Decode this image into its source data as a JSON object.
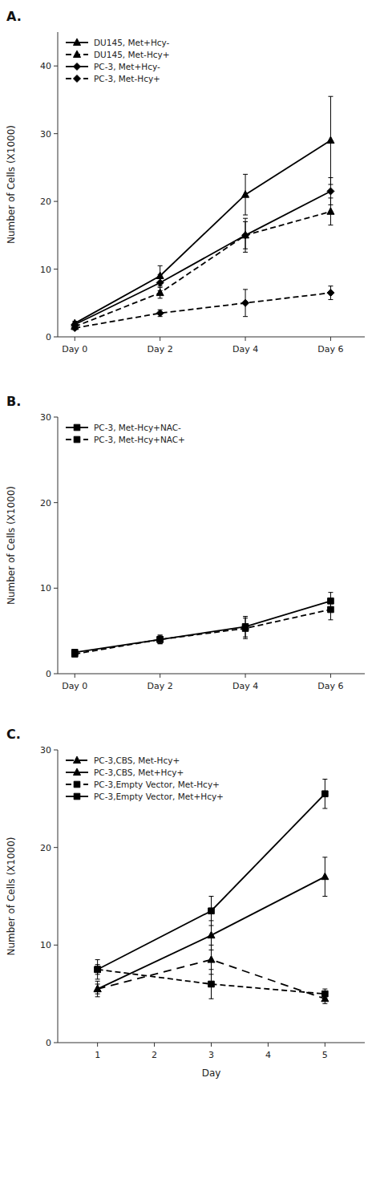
{
  "chart_data": [
    {
      "type": "line",
      "title": "A.",
      "x": [
        0,
        2,
        4,
        6
      ],
      "xlim": [
        -0.4,
        6.8
      ],
      "xticks": [
        {
          "value": 0,
          "label": "Day 0"
        },
        {
          "value": 2,
          "label": "Day 2"
        },
        {
          "value": 4,
          "label": "Day 4"
        },
        {
          "value": 6,
          "label": "Day 6"
        }
      ],
      "y_label": "Number of Cells (X1000)",
      "ylim": [
        0,
        45
      ],
      "yticks": [
        0,
        10,
        20,
        30,
        40
      ],
      "legend": "upper left",
      "series": [
        {
          "name": "DU145, Met+Hcy-",
          "color": "black",
          "line_style": "solid",
          "marker": "triangle",
          "values": [
            2.0,
            9.0,
            21.0,
            29.0
          ],
          "errors": [
            0.3,
            1.5,
            3.0,
            6.5
          ]
        },
        {
          "name": "DU145, Met-Hcy+",
          "color": "black",
          "line_style": "dashed",
          "marker": "triangle",
          "values": [
            1.5,
            6.5,
            15.0,
            18.5
          ],
          "errors": [
            0.2,
            0.8,
            2.0,
            2.0
          ]
        },
        {
          "name": "PC-3, Met+Hcy-",
          "color": "black",
          "line_style": "solid",
          "marker": "diamond",
          "values": [
            1.8,
            8.0,
            15.0,
            21.5
          ],
          "errors": [
            0.3,
            1.2,
            2.5,
            2.0
          ]
        },
        {
          "name": "PC-3, Met-Hcy+",
          "color": "black",
          "line_style": "dashed",
          "marker": "diamond",
          "values": [
            1.3,
            3.5,
            5.0,
            6.5
          ],
          "errors": [
            0.2,
            0.5,
            2.0,
            1.0
          ]
        }
      ]
    },
    {
      "type": "line",
      "title": "B.",
      "x": [
        0,
        2,
        4,
        6
      ],
      "xlim": [
        -0.4,
        6.8
      ],
      "xticks": [
        {
          "value": 0,
          "label": "Day 0"
        },
        {
          "value": 2,
          "label": "Day 2"
        },
        {
          "value": 4,
          "label": "Day 4"
        },
        {
          "value": 6,
          "label": "Day 6"
        }
      ],
      "y_label": "Number of Cells (X1000)",
      "ylim": [
        0,
        30
      ],
      "yticks": [
        0,
        10,
        20,
        30
      ],
      "legend": "upper left",
      "series": [
        {
          "name": "PC-3, Met-Hcy+NAC-",
          "color": "black",
          "line_style": "solid",
          "marker": "square",
          "values": [
            2.5,
            4.0,
            5.5,
            8.5
          ],
          "errors": [
            0.2,
            0.5,
            1.2,
            1.0
          ]
        },
        {
          "name": "PC-3, Met-Hcy+NAC+",
          "color": "black",
          "line_style": "dashed",
          "marker": "square",
          "values": [
            2.3,
            4.0,
            5.3,
            7.5
          ],
          "errors": [
            0.2,
            0.5,
            1.2,
            1.2
          ]
        }
      ]
    },
    {
      "type": "line",
      "title": "C.",
      "x_label": "Day",
      "x": [
        1,
        3,
        5
      ],
      "xlim": [
        0.3,
        5.7
      ],
      "xticks": [
        1,
        2,
        3,
        4,
        5
      ],
      "y_label": "Number of Cells (X1000)",
      "ylim": [
        0,
        30
      ],
      "yticks": [
        0,
        10,
        20,
        30
      ],
      "legend": "upper left",
      "series": [
        {
          "name": "PC-3,CBS, Met-Hcy+",
          "color": "black",
          "line_style": "loosely-dashed",
          "marker": "triangle",
          "values": [
            5.5,
            8.5,
            4.5
          ],
          "errors": [
            0.8,
            1.5,
            0.5
          ]
        },
        {
          "name": "PC-3,CBS, Met+Hcy+",
          "color": "black",
          "line_style": "solid",
          "marker": "triangle",
          "values": [
            5.5,
            11.0,
            17.0
          ],
          "errors": [
            0.5,
            1.5,
            2.0
          ]
        },
        {
          "name": "PC-3,Empty Vector, Met-Hcy+",
          "color": "black",
          "line_style": "dashed",
          "marker": "square",
          "values": [
            7.5,
            6.0,
            5.0
          ],
          "errors": [
            1.0,
            1.5,
            0.5
          ]
        },
        {
          "name": "PC-3,Empty Vector, Met+Hcy+",
          "color": "black",
          "line_style": "solid",
          "marker": "square",
          "values": [
            7.5,
            13.5,
            25.5
          ],
          "errors": [
            0.5,
            1.5,
            1.5
          ]
        }
      ]
    }
  ]
}
